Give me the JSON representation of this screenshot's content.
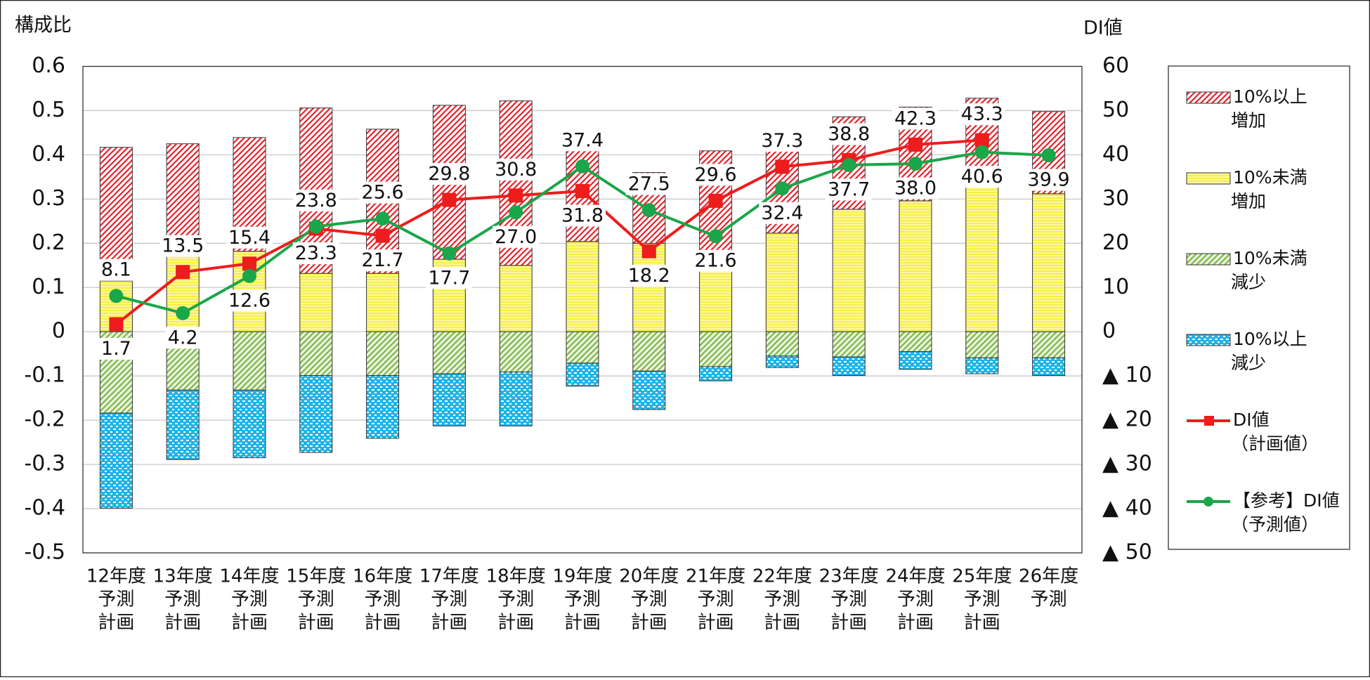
{
  "chart_data": {
    "type": "bar",
    "stacked": true,
    "y_label": "構成比",
    "y2_label": "DI値",
    "categories": [
      [
        "12年度",
        "予測",
        "計画"
      ],
      [
        "13年度",
        "予測",
        "計画"
      ],
      [
        "14年度",
        "予測",
        "計画"
      ],
      [
        "15年度",
        "予測",
        "計画"
      ],
      [
        "16年度",
        "予測",
        "計画"
      ],
      [
        "17年度",
        "予測",
        "計画"
      ],
      [
        "18年度",
        "予測",
        "計画"
      ],
      [
        "19年度",
        "予測",
        "計画"
      ],
      [
        "20年度",
        "予測",
        "計画"
      ],
      [
        "21年度",
        "予測",
        "計画"
      ],
      [
        "22年度",
        "予測",
        "計画"
      ],
      [
        "23年度",
        "予測",
        "計画"
      ],
      [
        "24年度",
        "予測",
        "計画"
      ],
      [
        "25年度",
        "予測",
        "計画"
      ],
      [
        "26年度",
        "予測"
      ]
    ],
    "ylim": [
      -0.5,
      0.6
    ],
    "yticks": [
      -0.5,
      -0.4,
      -0.3,
      -0.2,
      -0.1,
      0,
      0.1,
      0.2,
      0.3,
      0.4,
      0.5,
      0.6
    ],
    "y2lim": [
      -50,
      60
    ],
    "y2ticks": [
      {
        "value": -50,
        "label": "▲ 50"
      },
      {
        "value": -40,
        "label": "▲ 40"
      },
      {
        "value": -30,
        "label": "▲ 30"
      },
      {
        "value": -20,
        "label": "▲ 20"
      },
      {
        "value": -10,
        "label": "▲ 10"
      },
      0,
      10,
      20,
      30,
      40,
      50,
      60
    ],
    "grid": true,
    "legend": "right",
    "series": [
      {
        "name": [
          "10%以上",
          "増加"
        ],
        "type": "bar",
        "color": "#e8202a",
        "pattern": "diagonal",
        "values": [
          0.302,
          0.247,
          0.257,
          0.374,
          0.326,
          0.348,
          0.372,
          0.237,
          0.16,
          0.269,
          0.232,
          0.209,
          0.212,
          0.196,
          0.186
        ]
      },
      {
        "name": [
          "10%未満",
          "増加"
        ],
        "type": "bar",
        "color": "#f5ec2a",
        "pattern": "horizontal",
        "values": [
          0.115,
          0.178,
          0.182,
          0.132,
          0.132,
          0.164,
          0.15,
          0.204,
          0.2,
          0.14,
          0.223,
          0.277,
          0.296,
          0.332,
          0.312
        ]
      },
      {
        "name": [
          "10%未満",
          "減少"
        ],
        "type": "bar",
        "color": "#7ab648",
        "pattern": "diagonal",
        "values": [
          -0.184,
          -0.132,
          -0.132,
          -0.099,
          -0.099,
          -0.095,
          -0.091,
          -0.071,
          -0.089,
          -0.079,
          -0.055,
          -0.057,
          -0.045,
          -0.059,
          -0.059
        ]
      },
      {
        "name": [
          "10%以上",
          "減少"
        ],
        "type": "bar",
        "color": "#1fb4e8",
        "pattern": "dots",
        "values": [
          -0.215,
          -0.157,
          -0.153,
          -0.174,
          -0.142,
          -0.118,
          -0.122,
          -0.052,
          -0.087,
          -0.032,
          -0.026,
          -0.042,
          -0.04,
          -0.036,
          -0.04
        ]
      },
      {
        "name": [
          "DI値",
          "（計画値）"
        ],
        "type": "line",
        "axis": "y2",
        "color": "#ee1c1c",
        "marker": "square",
        "values": [
          1.7,
          13.5,
          15.4,
          23.3,
          21.7,
          29.8,
          30.8,
          31.8,
          18.2,
          29.6,
          37.3,
          38.8,
          42.3,
          43.3,
          null
        ],
        "value_labels": [
          "1.7",
          "13.5",
          "15.4",
          "23.3",
          "21.7",
          "29.8",
          "30.8",
          "31.8",
          "18.2",
          "29.6",
          "37.3",
          "38.8",
          "42.3",
          "43.3",
          null
        ]
      },
      {
        "name": [
          "【参考】DI値",
          "（予測値）"
        ],
        "type": "line",
        "axis": "y2",
        "color": "#1aa64a",
        "marker": "circle",
        "values": [
          8.1,
          4.2,
          12.6,
          23.8,
          25.6,
          17.7,
          27.0,
          37.4,
          27.5,
          21.6,
          32.4,
          37.7,
          38.0,
          40.6,
          39.9
        ],
        "value_labels": [
          "8.1",
          "4.2",
          "12.6",
          "23.8",
          "25.6",
          "17.7",
          "27.0",
          "37.4",
          "27.5",
          "21.6",
          "32.4",
          "37.7",
          "38.0",
          "40.6",
          "39.9"
        ]
      }
    ]
  }
}
